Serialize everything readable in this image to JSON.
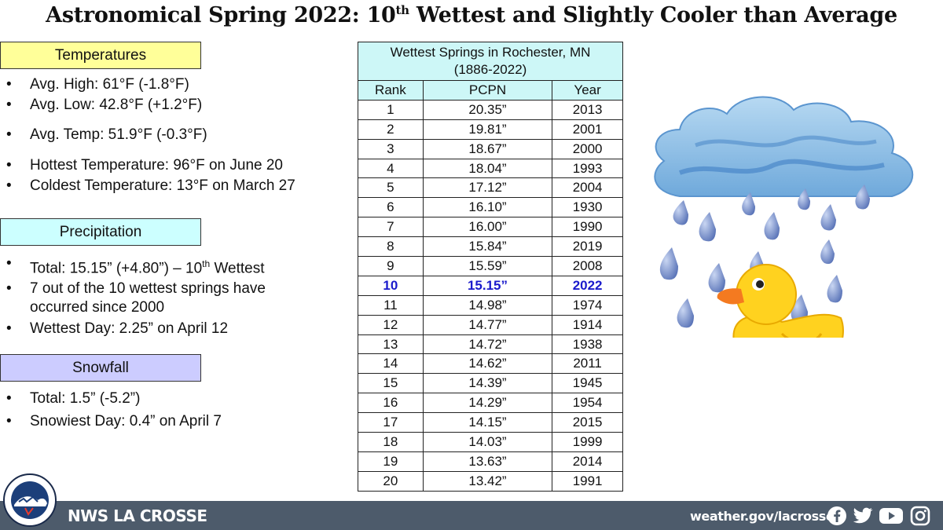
{
  "title": {
    "main": "Astronomical Spring 2022:  10",
    "sup": "th",
    "rest": " Wettest and Slightly Cooler than Average"
  },
  "temperatures": {
    "header": "Temperatures",
    "color": "#ffff99",
    "items": [
      "Avg. High:  61°F (-1.8°F)",
      "Avg. Low:  42.8°F (+1.2°F)",
      "Avg. Temp:  51.9°F (-0.3°F)",
      "Hottest Temperature: 96°F on June 20",
      "Coldest Temperature: 13°F on March 27"
    ]
  },
  "precipitation": {
    "header": "Precipitation",
    "color": "#ccffff",
    "total_prefix": "Total:  15.15” (+4.80”) – 10",
    "total_sup": "th",
    "total_suffix": " Wettest",
    "item2": "7 out of the 10 wettest springs have occurred since 2000",
    "item3": "Wettest Day: 2.25” on April 12"
  },
  "snowfall": {
    "header": "Snowfall",
    "color": "#ccccff",
    "items": [
      "Total:  1.5” (-5.2”)",
      "Snowiest Day: 0.4” on April 7"
    ]
  },
  "table": {
    "title_line1": "Wettest Springs in Rochester, MN",
    "title_line2": "(1886-2022)",
    "col_rank": "Rank",
    "col_pcpn": "PCPN",
    "col_year": "Year",
    "highlight_rank": "10",
    "rows": [
      [
        "1",
        "20.35”",
        "2013"
      ],
      [
        "2",
        "19.81”",
        "2001"
      ],
      [
        "3",
        "18.67”",
        "2000"
      ],
      [
        "4",
        "18.04”",
        "1993"
      ],
      [
        "5",
        "17.12”",
        "2004"
      ],
      [
        "6",
        "16.10”",
        "1930"
      ],
      [
        "7",
        "16.00”",
        "1990"
      ],
      [
        "8",
        "15.84”",
        "2019"
      ],
      [
        "9",
        "15.59”",
        "2008"
      ],
      [
        "10",
        "15.15”",
        "2022"
      ],
      [
        "11",
        "14.98”",
        "1974"
      ],
      [
        "12",
        "14.77”",
        "1914"
      ],
      [
        "13",
        "14.72”",
        "1938"
      ],
      [
        "14",
        "14.62”",
        "2011"
      ],
      [
        "15",
        "14.39”",
        "1945"
      ],
      [
        "16",
        "14.29”",
        "1954"
      ],
      [
        "17",
        "14.15”",
        "2015"
      ],
      [
        "18",
        "14.03”",
        "1999"
      ],
      [
        "19",
        "13.63”",
        "2014"
      ],
      [
        "20",
        "13.42”",
        "1991"
      ]
    ]
  },
  "footer": {
    "brand": "NWS LA CROSSE",
    "url": "weather.gov/lacrosse",
    "logo_text_top": "NATIONAL WEATHER SERVICE",
    "logo_text_bottom": "LA CROSSE, WI",
    "social_icons": [
      "facebook-icon",
      "twitter-icon",
      "youtube-icon",
      "instagram-icon"
    ]
  }
}
